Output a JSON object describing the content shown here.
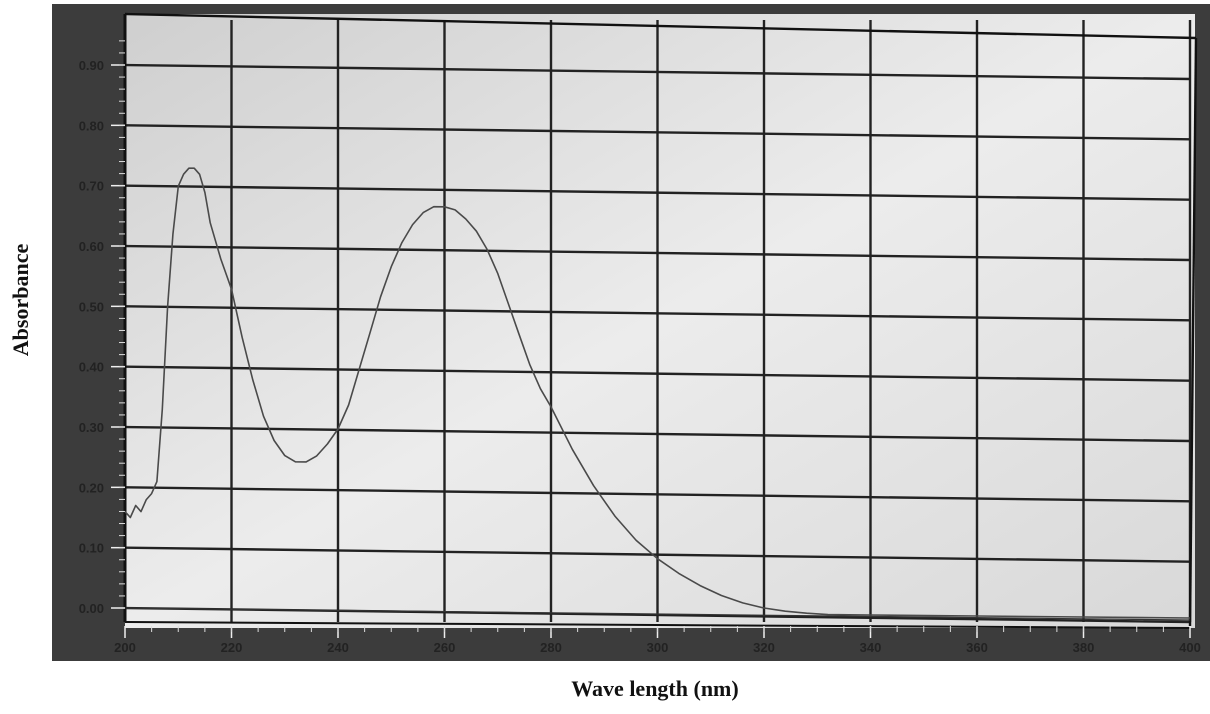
{
  "chart_data": {
    "type": "line",
    "title": "",
    "xlabel": "Wave length (nm)",
    "ylabel": "Absorbance",
    "xlim": [
      200,
      400
    ],
    "ylim": [
      -0.02,
      0.96
    ],
    "xticks": [
      "200",
      "220",
      "240",
      "260",
      "280",
      "300",
      "320",
      "340",
      "360",
      "380",
      "400"
    ],
    "yticks": [
      "0.00",
      "0.10",
      "0.20",
      "0.30",
      "0.40",
      "0.50",
      "0.60",
      "0.70",
      "0.80",
      "0.90"
    ],
    "grid": true,
    "legend": "none",
    "series": [
      {
        "x": [
          200,
          201,
          202,
          203,
          204,
          205,
          206,
          207,
          208,
          209,
          210,
          211,
          212,
          213,
          214,
          215,
          216,
          218,
          220,
          222,
          224,
          226,
          228,
          230,
          232,
          234,
          236,
          238,
          240,
          242,
          244,
          246,
          248,
          250,
          252,
          254,
          256,
          258,
          260,
          262,
          264,
          266,
          268,
          270,
          272,
          274,
          276,
          278,
          280,
          284,
          288,
          292,
          296,
          300,
          304,
          308,
          312,
          316,
          320,
          324,
          328,
          332,
          340,
          360,
          380,
          400
        ],
        "y": [
          0.16,
          0.15,
          0.17,
          0.16,
          0.18,
          0.19,
          0.21,
          0.33,
          0.5,
          0.62,
          0.7,
          0.72,
          0.73,
          0.73,
          0.72,
          0.69,
          0.64,
          0.58,
          0.53,
          0.45,
          0.38,
          0.32,
          0.28,
          0.255,
          0.245,
          0.245,
          0.255,
          0.275,
          0.3,
          0.34,
          0.4,
          0.46,
          0.52,
          0.57,
          0.61,
          0.64,
          0.66,
          0.67,
          0.67,
          0.665,
          0.65,
          0.63,
          0.6,
          0.56,
          0.51,
          0.46,
          0.41,
          0.37,
          0.34,
          0.27,
          0.21,
          0.16,
          0.12,
          0.09,
          0.066,
          0.046,
          0.03,
          0.018,
          0.01,
          0.005,
          0.002,
          0.0,
          0.0,
          0.0,
          0.0,
          0.0
        ]
      }
    ]
  }
}
